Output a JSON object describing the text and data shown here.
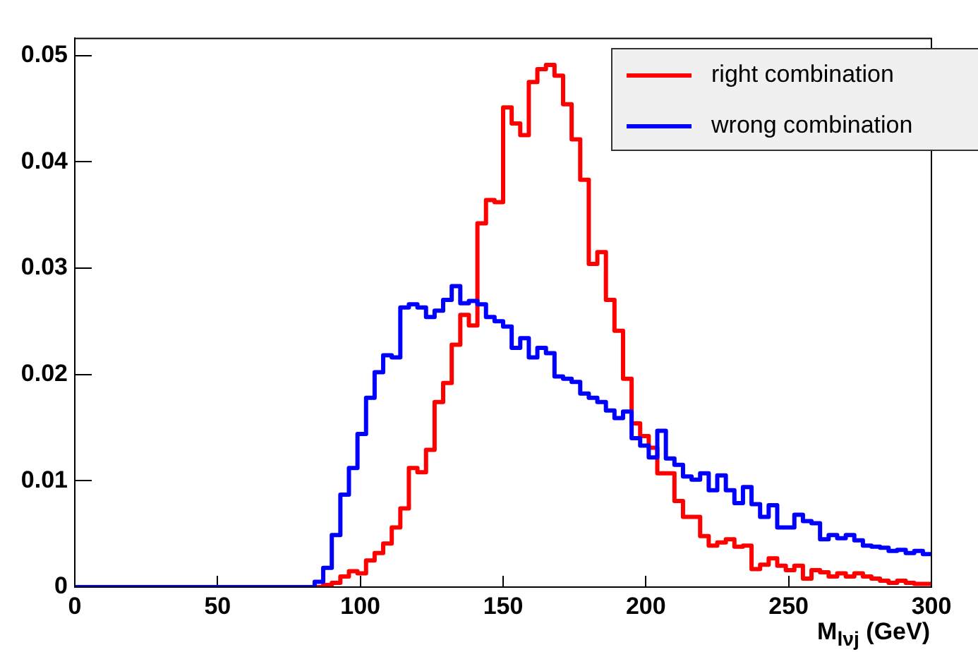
{
  "chart_data": {
    "type": "histogram",
    "xlabel": "M$_{lνj}$ (GeV)",
    "bins": [
      0,
      3,
      6,
      9,
      12,
      15,
      18,
      21,
      24,
      27,
      30,
      33,
      36,
      39,
      42,
      45,
      48,
      51,
      54,
      57,
      60,
      63,
      66,
      69,
      72,
      75,
      78,
      81,
      84,
      87,
      90,
      93,
      96,
      99,
      102,
      105,
      108,
      111,
      114,
      117,
      120,
      123,
      126,
      129,
      132,
      135,
      138,
      141,
      144,
      147,
      150,
      153,
      156,
      159,
      162,
      165,
      168,
      171,
      174,
      177,
      180,
      183,
      186,
      189,
      192,
      195,
      198,
      201,
      204,
      207,
      210,
      213,
      216,
      219,
      222,
      225,
      228,
      231,
      234,
      237,
      240,
      243,
      246,
      249,
      252,
      255,
      258,
      261,
      264,
      267,
      270,
      273,
      276,
      279,
      282,
      285,
      288,
      291,
      294,
      297,
      300
    ],
    "series": [
      {
        "name": "right combination",
        "color": "#ff0000",
        "values": [
          0,
          0,
          0,
          0,
          0,
          0,
          0,
          0,
          0,
          0,
          0,
          0,
          0,
          0,
          0,
          0,
          0,
          0,
          0,
          0,
          0,
          0,
          0,
          0,
          0,
          0,
          0,
          0,
          0,
          0.0002,
          0.0004,
          0.001,
          0.0015,
          0.0013,
          0.0025,
          0.0032,
          0.0041,
          0.0056,
          0.0074,
          0.0112,
          0.0108,
          0.0129,
          0.0174,
          0.0192,
          0.0228,
          0.0256,
          0.0246,
          0.0342,
          0.0364,
          0.0362,
          0.0451,
          0.0436,
          0.0425,
          0.0475,
          0.0487,
          0.0491,
          0.0481,
          0.0454,
          0.0421,
          0.0383,
          0.0304,
          0.0315,
          0.027,
          0.0241,
          0.0196,
          0.0154,
          0.0142,
          0.0131,
          0.0107,
          0.0107,
          0.0081,
          0.0066,
          0.0066,
          0.0048,
          0.0039,
          0.0042,
          0.0045,
          0.0038,
          0.0039,
          0.0017,
          0.0021,
          0.0027,
          0.002,
          0.0016,
          0.002,
          0.0008,
          0.0016,
          0.0014,
          0.001,
          0.0013,
          0.001,
          0.0013,
          0.001,
          0.0008,
          0.0006,
          0.0004,
          0.0006,
          0.0004,
          0.0003,
          0.0003
        ]
      },
      {
        "name": "wrong combination",
        "color": "#0000ff",
        "values": [
          0,
          0,
          0,
          0,
          0,
          0,
          0,
          0,
          0,
          0,
          0,
          0,
          0,
          0,
          0,
          0,
          0,
          0,
          0,
          0,
          0,
          0,
          0,
          0,
          0,
          0,
          0,
          0,
          0.0005,
          0.0018,
          0.0049,
          0.0087,
          0.0112,
          0.0144,
          0.0178,
          0.0202,
          0.0218,
          0.0216,
          0.0263,
          0.0266,
          0.0263,
          0.0254,
          0.026,
          0.027,
          0.0283,
          0.0267,
          0.0269,
          0.0266,
          0.0254,
          0.025,
          0.0245,
          0.0225,
          0.0234,
          0.0216,
          0.0225,
          0.022,
          0.0198,
          0.0196,
          0.0193,
          0.0182,
          0.0178,
          0.0174,
          0.0166,
          0.0159,
          0.0165,
          0.014,
          0.0133,
          0.0122,
          0.0147,
          0.0121,
          0.0115,
          0.0104,
          0.0101,
          0.0107,
          0.0091,
          0.0105,
          0.0091,
          0.0079,
          0.0094,
          0.0078,
          0.0066,
          0.0077,
          0.0056,
          0.0056,
          0.0068,
          0.0062,
          0.006,
          0.0045,
          0.0049,
          0.0046,
          0.0049,
          0.0044,
          0.0039,
          0.0038,
          0.0037,
          0.0034,
          0.0035,
          0.0032,
          0.0034,
          0.0031
        ]
      }
    ],
    "xlim": [
      0,
      300
    ],
    "xticks": [
      0,
      50,
      100,
      150,
      200,
      250,
      300
    ],
    "ylim": [
      0,
      0.0516
    ],
    "yticks": [
      0,
      0.01,
      0.02,
      0.03,
      0.04,
      0.05
    ],
    "grid": false,
    "legend": "top right"
  }
}
